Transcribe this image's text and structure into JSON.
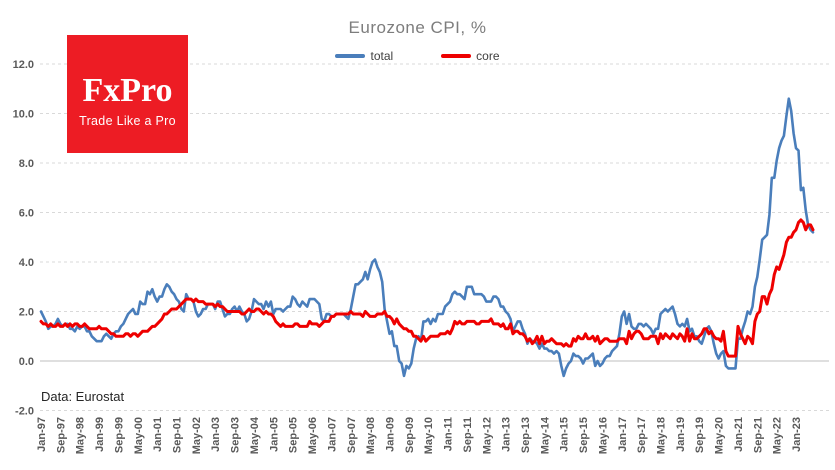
{
  "title": "Eurozone CPI, %",
  "source_note": "Data: Eurostat",
  "logo": {
    "brand": "FxPro",
    "tagline": "Trade Like a Pro",
    "bg_color": "#ed1c24",
    "text_color": "#ffffff"
  },
  "legend": [
    {
      "label": "total",
      "color": "#4a7ebb"
    },
    {
      "label": "core",
      "color": "#ee0000"
    }
  ],
  "colors": {
    "background": "#ffffff",
    "grid_dashed": "#d9d9d9",
    "zero_line": "#bfbfbf",
    "axis_text": "#595959",
    "title_text": "#7d7d7d",
    "note_text": "#262626"
  },
  "chart_data": {
    "type": "line",
    "title": "Eurozone CPI, %",
    "xlabel": "",
    "ylabel": "",
    "x_start": "Jan-1997",
    "x_end": "Aug-2023",
    "x_frequency": "monthly",
    "x_tick_every_n_months": 8,
    "x_tick_labels": [
      "Jan-97",
      "Sep-97",
      "May-98",
      "Jan-99",
      "Sep-99",
      "May-00",
      "Jan-01",
      "Sep-01",
      "May-02",
      "Jan-03",
      "Sep-03",
      "May-04",
      "Jan-05",
      "Sep-05",
      "May-06",
      "Jan-07",
      "Sep-07",
      "May-08",
      "Jan-09",
      "Sep-09",
      "May-10",
      "Jan-11",
      "Sep-11",
      "May-12",
      "Jan-13",
      "Sep-13",
      "May-14",
      "Jan-15",
      "Sep-15",
      "May-16",
      "Jan-17",
      "Sep-17",
      "May-18",
      "Jan-19",
      "Sep-19",
      "May-20",
      "Jan-21",
      "Sep-21",
      "May-22",
      "Jan-23"
    ],
    "ylim": [
      -2.0,
      12.6
    ],
    "y_ticks": [
      12.0,
      10.0,
      8.0,
      6.0,
      4.0,
      2.0,
      0.0,
      -2.0
    ],
    "y_tick_format": "one-decimal",
    "grid": "horizontal dashed lines, solid line at zero",
    "legend_position": "top center",
    "series": [
      {
        "name": "total",
        "color": "#4a7ebb",
        "width": 2.6,
        "values": [
          2.0,
          1.8,
          1.6,
          1.3,
          1.4,
          1.4,
          1.5,
          1.7,
          1.5,
          1.4,
          1.5,
          1.5,
          1.3,
          1.3,
          1.2,
          1.4,
          1.3,
          1.4,
          1.4,
          1.2,
          1.2,
          1.0,
          0.9,
          0.8,
          0.8,
          0.8,
          1.0,
          1.1,
          1.0,
          0.9,
          1.1,
          1.2,
          1.2,
          1.4,
          1.5,
          1.7,
          1.9,
          2.0,
          2.1,
          1.9,
          1.9,
          2.4,
          2.3,
          2.3,
          2.8,
          2.7,
          2.9,
          2.6,
          2.4,
          2.6,
          2.6,
          2.9,
          3.1,
          3.0,
          2.8,
          2.7,
          2.5,
          2.4,
          2.1,
          2.0,
          2.7,
          2.5,
          2.5,
          2.4,
          2.0,
          1.8,
          1.9,
          2.1,
          2.1,
          2.3,
          2.3,
          2.3,
          2.1,
          2.4,
          2.4,
          2.1,
          1.8,
          1.9,
          1.9,
          2.1,
          2.2,
          2.0,
          2.2,
          2.0,
          1.9,
          1.6,
          1.7,
          2.0,
          2.5,
          2.4,
          2.3,
          2.3,
          2.1,
          2.4,
          2.2,
          2.4,
          1.9,
          2.1,
          2.1,
          2.1,
          2.0,
          2.1,
          2.2,
          2.2,
          2.6,
          2.5,
          2.3,
          2.2,
          2.4,
          2.3,
          2.2,
          2.5,
          2.5,
          2.5,
          2.4,
          2.3,
          1.7,
          1.6,
          1.9,
          1.9,
          1.8,
          1.8,
          1.9,
          1.9,
          1.9,
          1.9,
          1.8,
          1.7,
          2.1,
          2.6,
          3.1,
          3.1,
          3.2,
          3.3,
          3.6,
          3.3,
          3.7,
          4.0,
          4.1,
          3.8,
          3.6,
          3.2,
          2.1,
          1.6,
          1.1,
          1.2,
          0.6,
          0.6,
          0.0,
          -0.1,
          -0.6,
          -0.2,
          -0.3,
          -0.1,
          0.5,
          0.9,
          1.0,
          0.8,
          1.6,
          1.6,
          1.7,
          1.5,
          1.7,
          1.6,
          1.9,
          1.9,
          1.9,
          2.2,
          2.3,
          2.4,
          2.7,
          2.8,
          2.7,
          2.7,
          2.6,
          2.5,
          3.0,
          3.0,
          3.0,
          2.7,
          2.7,
          2.7,
          2.7,
          2.6,
          2.4,
          2.4,
          2.4,
          2.6,
          2.6,
          2.5,
          2.2,
          2.2,
          2.0,
          1.9,
          1.7,
          1.2,
          1.4,
          1.6,
          1.6,
          1.3,
          1.1,
          0.7,
          0.9,
          0.8,
          0.8,
          0.7,
          0.5,
          0.7,
          0.5,
          0.5,
          0.4,
          0.4,
          0.3,
          0.4,
          0.3,
          -0.2,
          -0.6,
          -0.3,
          -0.1,
          0.0,
          0.3,
          0.2,
          0.2,
          0.1,
          -0.1,
          0.1,
          0.1,
          0.2,
          0.3,
          -0.2,
          0.0,
          -0.2,
          -0.1,
          0.1,
          0.2,
          0.2,
          0.4,
          0.5,
          0.6,
          1.1,
          1.8,
          2.0,
          1.5,
          1.9,
          1.4,
          1.3,
          1.3,
          1.5,
          1.5,
          1.4,
          1.5,
          1.4,
          1.3,
          1.1,
          1.3,
          1.3,
          1.9,
          2.0,
          2.1,
          2.0,
          2.1,
          2.2,
          1.9,
          1.5,
          1.4,
          1.5,
          1.4,
          1.7,
          1.2,
          1.3,
          1.0,
          1.0,
          0.8,
          0.7,
          1.0,
          1.3,
          1.4,
          1.2,
          0.7,
          0.3,
          0.1,
          0.3,
          0.4,
          -0.2,
          -0.3,
          -0.3,
          -0.3,
          -0.3,
          0.9,
          0.9,
          1.3,
          1.6,
          2.0,
          1.9,
          2.2,
          3.0,
          3.4,
          4.1,
          4.9,
          5.0,
          5.1,
          5.9,
          7.4,
          7.4,
          8.1,
          8.6,
          8.9,
          9.1,
          9.9,
          10.6,
          10.1,
          9.2,
          8.6,
          8.5,
          6.9,
          7.0,
          6.1,
          5.5,
          5.3,
          5.2
        ]
      },
      {
        "name": "core",
        "color": "#ee0000",
        "width": 3.0,
        "values": [
          1.6,
          1.5,
          1.5,
          1.4,
          1.5,
          1.4,
          1.4,
          1.5,
          1.4,
          1.4,
          1.5,
          1.4,
          1.5,
          1.4,
          1.5,
          1.5,
          1.4,
          1.4,
          1.5,
          1.4,
          1.3,
          1.3,
          1.3,
          1.3,
          1.4,
          1.3,
          1.3,
          1.3,
          1.2,
          1.1,
          1.1,
          1.0,
          1.0,
          1.0,
          1.0,
          1.1,
          1.1,
          1.0,
          1.1,
          1.1,
          1.0,
          1.1,
          1.2,
          1.2,
          1.2,
          1.3,
          1.4,
          1.4,
          1.5,
          1.6,
          1.7,
          1.9,
          1.9,
          2.0,
          2.1,
          2.1,
          2.1,
          2.2,
          2.3,
          2.4,
          2.5,
          2.5,
          2.5,
          2.4,
          2.5,
          2.4,
          2.4,
          2.4,
          2.3,
          2.3,
          2.3,
          2.3,
          2.2,
          2.3,
          2.2,
          2.2,
          2.1,
          2.0,
          2.0,
          2.0,
          2.0,
          2.0,
          2.0,
          1.9,
          1.9,
          2.0,
          2.1,
          2.0,
          2.0,
          2.1,
          2.1,
          2.0,
          1.9,
          2.0,
          1.9,
          1.9,
          1.8,
          1.6,
          1.5,
          1.4,
          1.5,
          1.4,
          1.4,
          1.4,
          1.4,
          1.5,
          1.5,
          1.4,
          1.4,
          1.4,
          1.4,
          1.6,
          1.5,
          1.5,
          1.5,
          1.4,
          1.5,
          1.6,
          1.6,
          1.6,
          1.8,
          1.8,
          1.9,
          1.9,
          1.9,
          1.9,
          1.9,
          1.9,
          2.0,
          1.9,
          1.9,
          1.9,
          1.9,
          1.8,
          2.0,
          1.9,
          1.8,
          1.8,
          1.8,
          1.9,
          1.9,
          1.9,
          2.0,
          1.8,
          1.8,
          1.7,
          1.5,
          1.7,
          1.5,
          1.4,
          1.3,
          1.3,
          1.2,
          1.2,
          1.0,
          1.0,
          0.9,
          0.8,
          1.0,
          0.8,
          0.9,
          1.0,
          1.0,
          1.0,
          1.0,
          1.1,
          1.1,
          1.1,
          1.2,
          1.1,
          1.3,
          1.6,
          1.5,
          1.6,
          1.5,
          1.5,
          1.6,
          1.6,
          1.6,
          1.6,
          1.5,
          1.5,
          1.6,
          1.6,
          1.6,
          1.6,
          1.7,
          1.5,
          1.5,
          1.5,
          1.4,
          1.5,
          1.3,
          1.3,
          1.5,
          1.1,
          1.2,
          1.2,
          1.1,
          1.1,
          1.0,
          0.8,
          0.9,
          0.7,
          0.8,
          1.0,
          0.7,
          1.0,
          0.7,
          0.8,
          0.8,
          0.9,
          0.8,
          0.7,
          0.7,
          0.7,
          0.6,
          0.7,
          0.6,
          0.6,
          0.9,
          0.8,
          1.0,
          0.9,
          0.9,
          1.1,
          0.9,
          0.9,
          1.0,
          0.8,
          1.0,
          0.7,
          0.8,
          0.9,
          0.9,
          0.8,
          0.8,
          0.8,
          0.8,
          0.9,
          0.9,
          0.9,
          0.7,
          1.2,
          0.9,
          1.1,
          1.2,
          1.2,
          1.1,
          0.9,
          0.9,
          0.9,
          1.0,
          1.0,
          1.0,
          0.7,
          1.1,
          0.9,
          1.1,
          1.0,
          0.9,
          1.1,
          1.0,
          0.9,
          1.1,
          1.0,
          0.8,
          1.3,
          0.8,
          1.1,
          0.9,
          0.9,
          1.0,
          1.1,
          1.3,
          1.3,
          1.1,
          1.2,
          1.0,
          0.9,
          0.9,
          0.8,
          1.2,
          0.4,
          0.2,
          0.2,
          0.2,
          0.2,
          1.4,
          1.1,
          0.9,
          0.7,
          1.0,
          0.9,
          0.7,
          1.6,
          1.9,
          2.0,
          2.6,
          2.6,
          2.3,
          2.7,
          2.9,
          3.5,
          3.8,
          3.7,
          4.0,
          4.3,
          4.8,
          5.0,
          5.0,
          5.2,
          5.3,
          5.6,
          5.7,
          5.6,
          5.3,
          5.5,
          5.5,
          5.3
        ]
      }
    ]
  }
}
